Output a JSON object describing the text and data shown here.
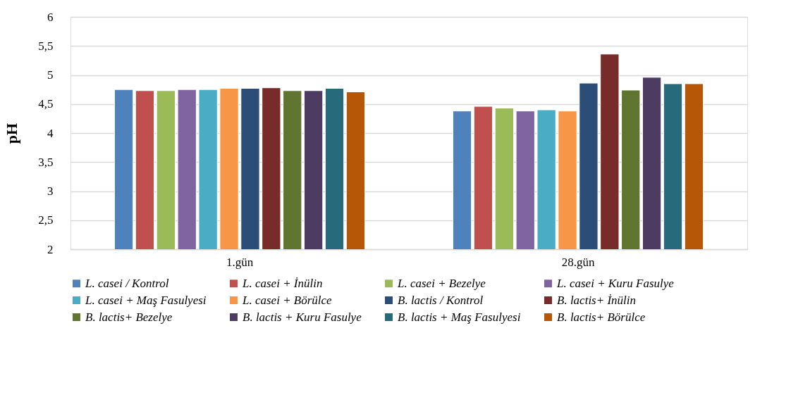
{
  "chart_data": {
    "type": "bar",
    "ylabel": "pH",
    "categories": [
      "1.gün",
      "28.gün"
    ],
    "series": [
      {
        "name": "L. casei / Kontrol",
        "color": "#4f81bd",
        "values": [
          4.75,
          4.38
        ]
      },
      {
        "name": "L. casei + İnülin",
        "color": "#c0504d",
        "values": [
          4.73,
          4.46
        ]
      },
      {
        "name": "L. casei + Bezelye",
        "color": "#9bbb59",
        "values": [
          4.73,
          4.43
        ]
      },
      {
        "name": "L. casei + Kuru Fasulye",
        "color": "#8064a2",
        "values": [
          4.75,
          4.38
        ]
      },
      {
        "name": "L. casei + Maş Fasulyesi",
        "color": "#4bacc6",
        "values": [
          4.75,
          4.4
        ]
      },
      {
        "name": "L. casei + Börülce",
        "color": "#f79646",
        "values": [
          4.77,
          4.38
        ]
      },
      {
        "name": "B. lactis / Kontrol",
        "color": "#2c4d75",
        "values": [
          4.77,
          4.86
        ]
      },
      {
        "name": "B. lactis+ İnülin",
        "color": "#772c2a",
        "values": [
          4.78,
          5.36
        ]
      },
      {
        "name": "B. lactis+ Bezelye",
        "color": "#5f7530",
        "values": [
          4.73,
          4.74
        ]
      },
      {
        "name": "B. lactis + Kuru Fasulye",
        "color": "#4d3b62",
        "values": [
          4.73,
          4.96
        ]
      },
      {
        "name": "B. lactis + Maş Fasulyesi",
        "color": "#276a7c",
        "values": [
          4.77,
          4.85
        ]
      },
      {
        "name": "B. lactis+ Börülce",
        "color": "#b65708",
        "values": [
          4.71,
          4.85
        ]
      }
    ],
    "ylim": [
      2,
      6
    ],
    "yticks": [
      2,
      {
        "value": 2.5,
        "label": "2,5"
      },
      3,
      {
        "value": 3.5,
        "label": "3,5"
      },
      4,
      {
        "value": 4.5,
        "label": "4,5"
      },
      5,
      {
        "value": 5.5,
        "label": "5,5"
      },
      6
    ],
    "grid": "y",
    "legend": "bottom"
  }
}
